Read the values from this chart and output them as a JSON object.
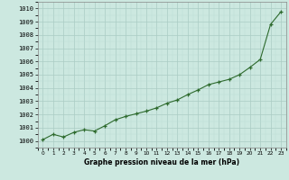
{
  "hours": [
    0,
    1,
    2,
    3,
    4,
    5,
    6,
    7,
    8,
    9,
    10,
    11,
    12,
    13,
    14,
    15,
    16,
    17,
    18,
    19,
    20,
    21,
    22,
    23
  ],
  "pressure": [
    1000.1,
    1000.5,
    1000.3,
    1000.65,
    1000.85,
    1000.75,
    1001.15,
    1001.6,
    1001.85,
    1002.05,
    1002.25,
    1002.5,
    1002.85,
    1003.1,
    1003.5,
    1003.85,
    1004.25,
    1004.45,
    1004.65,
    1005.0,
    1005.55,
    1006.15,
    1008.8,
    1009.75
  ],
  "ylim_min": 999.5,
  "ylim_max": 1010.5,
  "yticks": [
    1000,
    1001,
    1002,
    1003,
    1004,
    1005,
    1006,
    1007,
    1008,
    1009,
    1010
  ],
  "xlabel": "Graphe pression niveau de la mer (hPa)",
  "line_color": "#2d6a2d",
  "marker_color": "#2d6a2d",
  "bg_color": "#cce8e0",
  "grid_major_color": "#aaccc4",
  "grid_minor_color": "#bbddd6"
}
